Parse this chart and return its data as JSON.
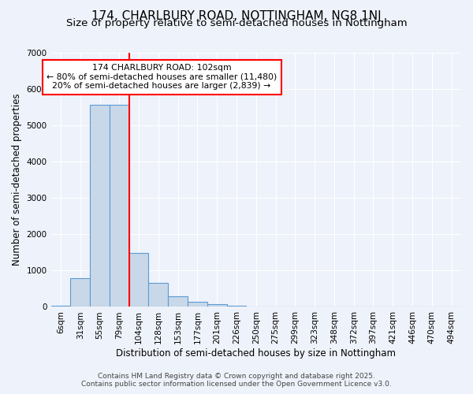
{
  "title": "174, CHARLBURY ROAD, NOTTINGHAM, NG8 1NJ",
  "subtitle": "Size of property relative to semi-detached houses in Nottingham",
  "xlabel": "Distribution of semi-detached houses by size in Nottingham",
  "ylabel": "Number of semi-detached properties",
  "bin_labels": [
    "6sqm",
    "31sqm",
    "55sqm",
    "79sqm",
    "104sqm",
    "128sqm",
    "153sqm",
    "177sqm",
    "201sqm",
    "226sqm",
    "250sqm",
    "275sqm",
    "299sqm",
    "323sqm",
    "348sqm",
    "372sqm",
    "397sqm",
    "421sqm",
    "446sqm",
    "470sqm",
    "494sqm"
  ],
  "bar_values": [
    30,
    800,
    5550,
    5550,
    1490,
    660,
    290,
    140,
    70,
    35,
    0,
    0,
    0,
    0,
    0,
    0,
    0,
    0,
    0,
    0,
    0
  ],
  "bar_color": "#c8d8e8",
  "bar_edge_color": "#5b9bd5",
  "vline_pos": 3.5,
  "vline_color": "red",
  "annotation_line1": "174 CHARLBURY ROAD: 102sqm",
  "annotation_line2": "← 80% of semi-detached houses are smaller (11,480)",
  "annotation_line3": "20% of semi-detached houses are larger (2,839) →",
  "annotation_box_color": "white",
  "annotation_box_edge": "red",
  "ylim": [
    0,
    7000
  ],
  "yticks": [
    0,
    1000,
    2000,
    3000,
    4000,
    5000,
    6000,
    7000
  ],
  "background_color": "#eef2fa",
  "grid_color": "white",
  "footer_line1": "Contains HM Land Registry data © Crown copyright and database right 2025.",
  "footer_line2": "Contains public sector information licensed under the Open Government Licence v3.0.",
  "title_fontsize": 11,
  "subtitle_fontsize": 9.5,
  "axis_label_fontsize": 8.5,
  "tick_fontsize": 7.5,
  "footer_fontsize": 6.5
}
